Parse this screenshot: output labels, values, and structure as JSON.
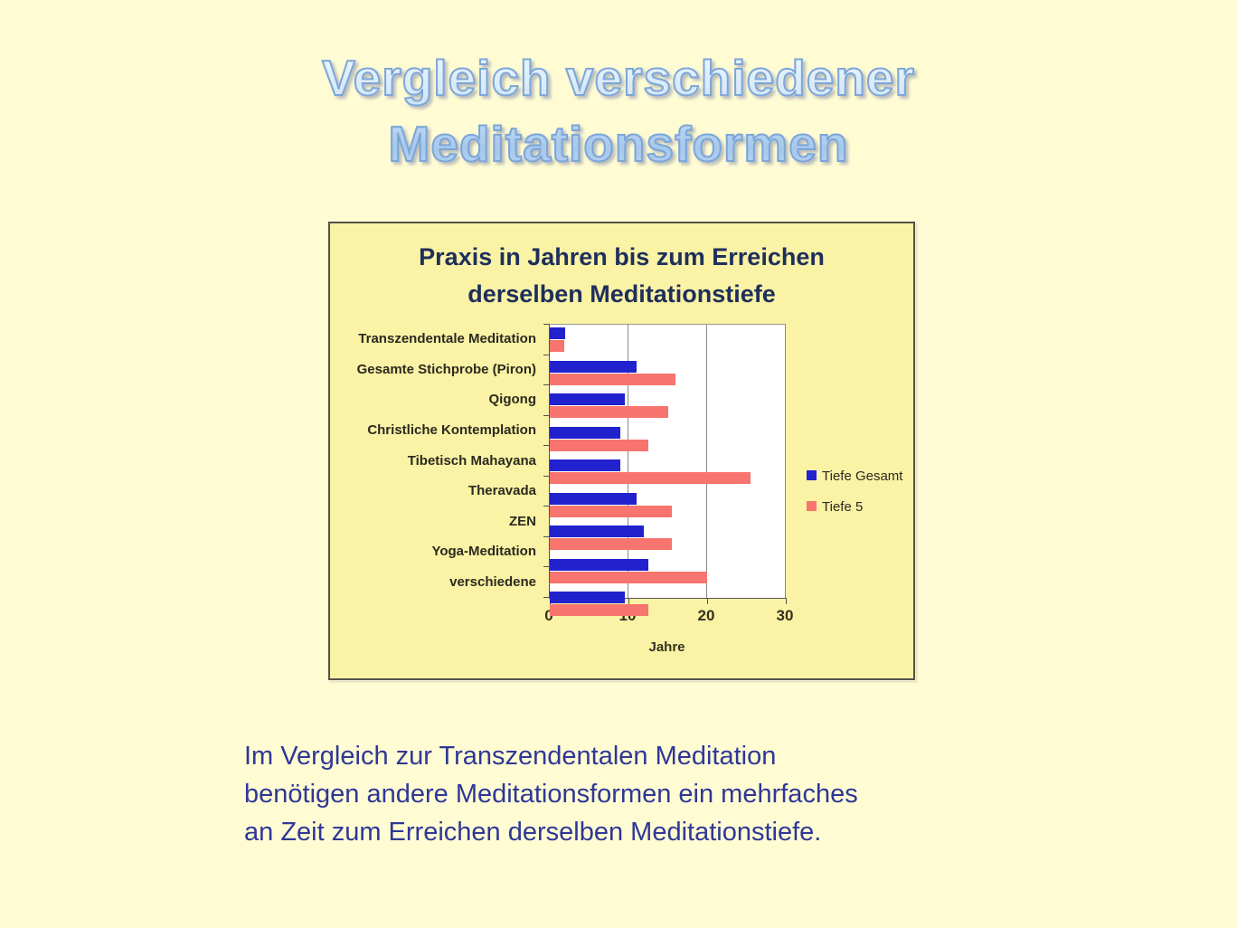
{
  "slide": {
    "title": {
      "lines": [
        "Vergleich verschiedener",
        "Meditationsformen"
      ],
      "fill_color": "#C7DDF4",
      "outline_color": "#7CA6D8"
    },
    "caption": {
      "lines": [
        "Im Vergleich zur Transzendentalen Meditation",
        "benötigen andere Meditationsformen ein mehrfaches",
        "an Zeit zum Erreichen derselben Meditationstiefe."
      ],
      "color": "#2F3796"
    },
    "background_color": "#FFFCD4"
  },
  "chart_data": {
    "type": "bar",
    "orientation": "horizontal",
    "title": "Praxis in Jahren bis zum Erreichen derselben Meditationstiefe",
    "categories": [
      "Transzendentale Meditation",
      "Gesamte Stichprobe (Piron)",
      "Qigong",
      "Christliche Kontemplation",
      "Tibetisch Mahayana",
      "Theravada",
      "ZEN",
      "Yoga-Meditation",
      "verschiedene"
    ],
    "series": [
      {
        "name": "Tiefe Gesamt",
        "color": "#2121CE",
        "values": [
          2,
          11,
          9.5,
          9,
          9,
          11,
          12,
          12.5,
          9.5
        ]
      },
      {
        "name": "Tiefe 5",
        "color": "#F8746E",
        "values": [
          1.8,
          16,
          15,
          12.5,
          25.5,
          15.5,
          15.5,
          20,
          12.5
        ]
      }
    ],
    "xlabel": "Jahre",
    "x_ticks": [
      0,
      10,
      20,
      30
    ],
    "xlim": [
      0,
      30
    ],
    "grid": true,
    "legend_position": "right",
    "plot_bg": "#FFFFFF",
    "frame_bg": "#FAF2A4",
    "frame_border": "#54524A",
    "title_color": "#1E2F5C"
  }
}
